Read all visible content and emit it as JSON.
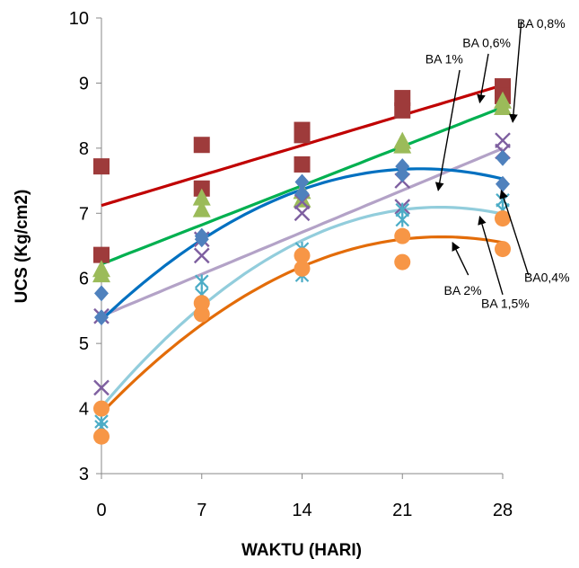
{
  "chart_data": {
    "type": "scatter",
    "title": "",
    "xlabel": "WAKTU (HARI)",
    "ylabel": "UCS (Kg/cm2)",
    "xlim": [
      0,
      28
    ],
    "ylim": [
      3,
      10
    ],
    "xticks": [
      0,
      7,
      14,
      21,
      28
    ],
    "yticks": [
      3,
      4,
      5,
      6,
      7,
      8,
      9,
      10
    ],
    "grid": false,
    "series": [
      {
        "color": "#9e3b3b",
        "marker": "square",
        "trend_color": "#c00000",
        "points": [
          [
            0,
            7.72
          ],
          [
            0,
            6.36
          ],
          [
            7,
            8.05
          ],
          [
            7,
            7.38
          ],
          [
            14,
            8.28
          ],
          [
            14,
            8.2
          ],
          [
            14,
            7.75
          ],
          [
            21,
            8.77
          ],
          [
            21,
            8.58
          ],
          [
            28,
            8.95
          ],
          [
            28,
            8.8
          ]
        ],
        "trend": {
          "kind": "linear",
          "coef": [
            7.12,
            0.066
          ]
        }
      },
      {
        "color": "#9bbb59",
        "marker": "triangle",
        "trend_color": "#00b050",
        "points": [
          [
            0,
            6.13
          ],
          [
            0,
            6.05
          ],
          [
            7,
            7.23
          ],
          [
            7,
            7.05
          ],
          [
            14,
            7.33
          ],
          [
            14,
            7.2
          ],
          [
            21,
            8.1
          ],
          [
            21,
            8.03
          ],
          [
            28,
            8.72
          ],
          [
            28,
            8.62
          ]
        ],
        "trend": {
          "kind": "linear",
          "coef": [
            6.22,
            0.086
          ]
        }
      },
      {
        "color": "#7e5fa0",
        "marker": "x",
        "trend_color": "#b3a2c7",
        "points": [
          [
            0,
            4.32
          ],
          [
            0,
            5.42
          ],
          [
            7,
            6.6
          ],
          [
            7,
            6.35
          ],
          [
            14,
            7.18
          ],
          [
            14,
            7.0
          ],
          [
            21,
            7.5
          ],
          [
            21,
            7.1
          ],
          [
            28,
            8.12
          ],
          [
            28,
            7.95
          ]
        ],
        "trend": {
          "kind": "linear",
          "coef": [
            5.42,
            0.092
          ]
        }
      },
      {
        "color": "#4f81bd",
        "marker": "diamond",
        "trend_color": "#0070c0",
        "points": [
          [
            0,
            5.77
          ],
          [
            0,
            5.4
          ],
          [
            7,
            6.65
          ],
          [
            7,
            6.6
          ],
          [
            14,
            7.48
          ],
          [
            14,
            7.3
          ],
          [
            21,
            7.72
          ],
          [
            21,
            7.6
          ],
          [
            28,
            7.85
          ],
          [
            28,
            7.45
          ]
        ],
        "trend": {
          "kind": "poly2",
          "coef": [
            5.36,
            0.209,
            -0.0047
          ]
        }
      },
      {
        "color": "#4bacc6",
        "marker": "star",
        "trend_color": "#92cddc",
        "points": [
          [
            0,
            3.8
          ],
          [
            0,
            3.72
          ],
          [
            7,
            5.95
          ],
          [
            7,
            5.75
          ],
          [
            14,
            6.45
          ],
          [
            14,
            6.05
          ],
          [
            21,
            7.05
          ],
          [
            21,
            6.9
          ],
          [
            28,
            7.2
          ],
          [
            28,
            7.05
          ]
        ],
        "trend": {
          "kind": "poly2",
          "coef": [
            4.02,
            0.26,
            -0.0055
          ]
        }
      },
      {
        "color": "#f79646",
        "marker": "circle",
        "trend_color": "#e36c09",
        "points": [
          [
            0,
            4.0
          ],
          [
            0,
            3.57
          ],
          [
            7,
            5.62
          ],
          [
            7,
            5.45
          ],
          [
            14,
            6.35
          ],
          [
            14,
            6.15
          ],
          [
            21,
            6.65
          ],
          [
            21,
            6.25
          ],
          [
            28,
            6.92
          ],
          [
            28,
            6.45
          ]
        ],
        "trend": {
          "kind": "poly2",
          "coef": [
            3.93,
            0.228,
            -0.0048
          ]
        }
      }
    ],
    "annotations": [
      {
        "text": "BA 0,8%",
        "tx": 29.0,
        "ty": 9.85,
        "ax": 29.3,
        "ay": 9.95,
        "hx": 28.7,
        "hy": 8.4
      },
      {
        "text": "BA 0,6%",
        "tx": 25.2,
        "ty": 9.55,
        "ax": 27.0,
        "ay": 9.45,
        "hx": 26.4,
        "hy": 8.7
      },
      {
        "text": "BA 1%",
        "tx": 22.6,
        "ty": 9.3,
        "ax": 25.0,
        "ay": 9.2,
        "hx": 23.5,
        "hy": 7.35
      },
      {
        "text": "BA0,4%",
        "tx": 29.5,
        "ty": 5.95,
        "ax": 29.8,
        "ay": 6.05,
        "hx": 27.9,
        "hy": 7.35
      },
      {
        "text": "BA 2%",
        "tx": 23.9,
        "ty": 5.75,
        "ax": 25.6,
        "ay": 6.05,
        "hx": 24.5,
        "hy": 6.55
      },
      {
        "text": "BA 1,5%",
        "tx": 26.5,
        "ty": 5.55,
        "ax": 28.0,
        "ay": 5.75,
        "hx": 26.4,
        "hy": 6.95
      }
    ]
  }
}
